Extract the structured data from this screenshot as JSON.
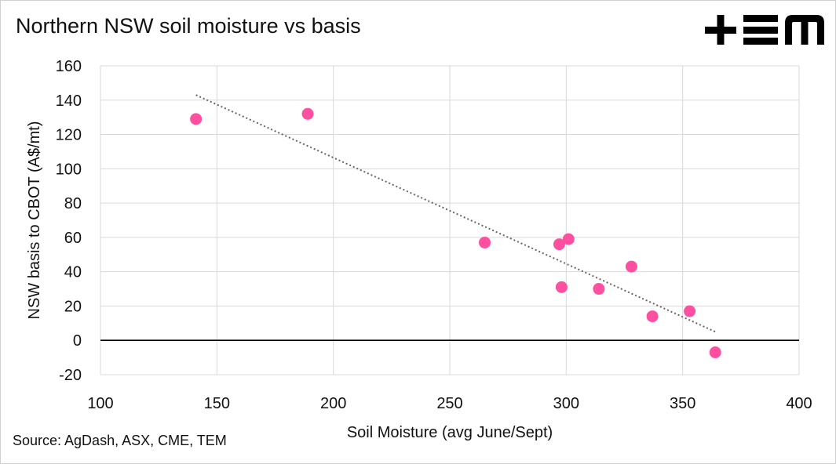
{
  "header": {
    "title": "Northern NSW soil moisture vs basis",
    "logo_icon": "tem-logo-icon"
  },
  "footer": {
    "source": "Source: AgDash, ASX, CME, TEM"
  },
  "colors": {
    "point": "#ff4fa0",
    "grid": "#d9d9d9",
    "trendline": "#666666",
    "zero_line": "#000000",
    "logo": "#000000"
  },
  "chart_data": {
    "type": "scatter",
    "title": "Northern NSW soil moisture vs basis",
    "xlabel": "Soil Moisture (avg June/Sept)",
    "ylabel": "NSW basis to CBOT (A$/mt)",
    "xlim": [
      100,
      400
    ],
    "ylim": [
      -20,
      160
    ],
    "x_ticks": [
      100,
      150,
      200,
      250,
      300,
      350,
      400
    ],
    "y_ticks": [
      -20,
      0,
      20,
      40,
      60,
      80,
      100,
      120,
      140,
      160
    ],
    "grid": true,
    "legend": "none",
    "points": [
      {
        "x": 141,
        "y": 129
      },
      {
        "x": 189,
        "y": 132
      },
      {
        "x": 265,
        "y": 57
      },
      {
        "x": 297,
        "y": 56
      },
      {
        "x": 301,
        "y": 59
      },
      {
        "x": 298,
        "y": 31
      },
      {
        "x": 314,
        "y": 30
      },
      {
        "x": 328,
        "y": 43
      },
      {
        "x": 337,
        "y": 14
      },
      {
        "x": 353,
        "y": 17
      },
      {
        "x": 364,
        "y": -7
      }
    ],
    "trendline": {
      "style": "dotted",
      "type": "linear",
      "from": {
        "x": 141,
        "y": 143
      },
      "to": {
        "x": 364,
        "y": 5
      }
    }
  }
}
